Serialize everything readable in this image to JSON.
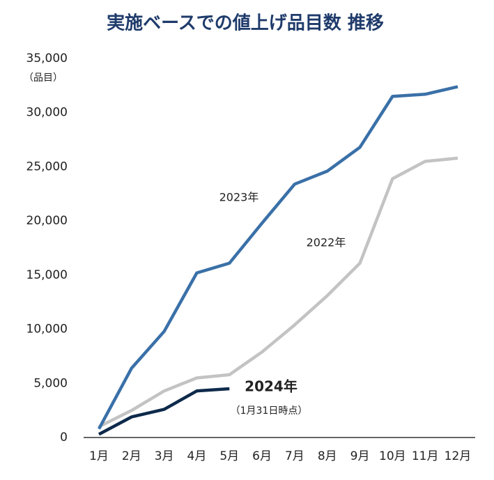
{
  "chart_data": {
    "type": "line",
    "title": "実施ベースでの値上げ品目数 推移",
    "y_unit": "（品目）",
    "categories": [
      "1月",
      "2月",
      "3月",
      "4月",
      "5月",
      "6月",
      "7月",
      "8月",
      "9月",
      "10月",
      "11月",
      "12月"
    ],
    "series": [
      {
        "name": "2022年",
        "color": "#c3c3c3",
        "values": [
          1000,
          2500,
          4300,
          5500,
          5800,
          7900,
          10400,
          13100,
          16100,
          23900,
          25500,
          25800
        ]
      },
      {
        "name": "2023年",
        "color": "#3a70a8",
        "values": [
          800,
          6400,
          9800,
          15200,
          16100,
          19800,
          23400,
          24600,
          26800,
          31500,
          31700,
          32400
        ]
      },
      {
        "name": "2024年",
        "color": "#0e2a4b",
        "values": [
          300,
          1900,
          2600,
          4300,
          4500,
          null,
          null,
          null,
          null,
          null,
          null,
          null
        ]
      }
    ],
    "annotation": "（1月31日時点）",
    "ylim": [
      0,
      35000
    ],
    "yticks": [
      0,
      {
        "value": 5000,
        "label": "5,000"
      },
      {
        "value": 10000,
        "label": "10,000"
      },
      {
        "value": 15000,
        "label": "15,000"
      },
      {
        "value": 20000,
        "label": "20,000"
      },
      {
        "value": 25000,
        "label": "25,000"
      },
      {
        "value": 30000,
        "label": "30,000"
      },
      {
        "value": 35000,
        "label": "35,000"
      }
    ],
    "grid": false
  }
}
